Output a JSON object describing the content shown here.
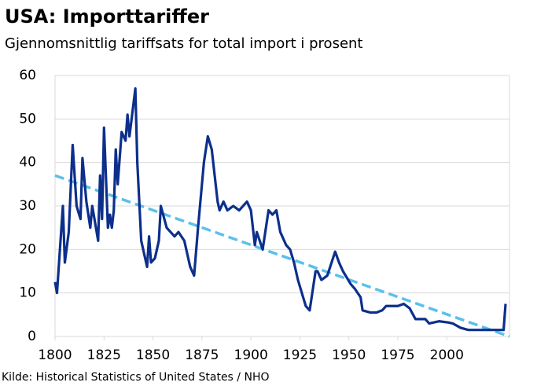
{
  "chart_data": {
    "type": "line",
    "title": "USA: Importtariffer",
    "subtitle": "Gjennomsnittlig  tariffsats for total import i prosent",
    "source": "Kilde: Historical Statistics of United States / NHO",
    "x": [
      1800,
      1801,
      1804,
      1805,
      1807,
      1809,
      1811,
      1813,
      1814,
      1816,
      1818,
      1819,
      1822,
      1823,
      1824,
      1825,
      1827,
      1828,
      1829,
      1830,
      1831,
      1832,
      1834,
      1836,
      1837,
      1838,
      1841,
      1842,
      1844,
      1847,
      1848,
      1849,
      1851,
      1853,
      1854,
      1857,
      1861,
      1863,
      1866,
      1869,
      1871,
      1873,
      1876,
      1878,
      1880,
      1883,
      1884,
      1886,
      1888,
      1891,
      1894,
      1898,
      1900,
      1902,
      1903,
      1906,
      1907,
      1909,
      1911,
      1913,
      1915,
      1918,
      1920,
      1922,
      1924,
      1928,
      1930,
      1933,
      1934,
      1936,
      1939,
      1943,
      1945,
      1947,
      1951,
      1953,
      1956,
      1957,
      1961,
      1964,
      1967,
      1969,
      1975,
      1978,
      1981,
      1984,
      1989,
      1991,
      1996,
      2001,
      2003,
      2007,
      2011,
      2020,
      2029,
      2030
    ],
    "series": [
      {
        "color": "#0d2f8c",
        "values": [
          12.5,
          10,
          30,
          17,
          24,
          44,
          30,
          27,
          41,
          31,
          25,
          30,
          22,
          37,
          27,
          48,
          25,
          28,
          25,
          29,
          43,
          35,
          47,
          45,
          51,
          46,
          57,
          40,
          22,
          16,
          23,
          17,
          18,
          22,
          30,
          25,
          23,
          24,
          22,
          16,
          14,
          25,
          40,
          46,
          43,
          31,
          29,
          31,
          29,
          30,
          29,
          31,
          29,
          21,
          24,
          20,
          23,
          29,
          28,
          29,
          24,
          21,
          20,
          17,
          13,
          7,
          6,
          15,
          15,
          13,
          14,
          19.5,
          17,
          15,
          12,
          11,
          9,
          6,
          5.5,
          5.5,
          6,
          7,
          7,
          7.5,
          6.5,
          4,
          4,
          3,
          3.5,
          3.2,
          3,
          2,
          1.5,
          1.5,
          1.5,
          7.5
        ]
      }
    ],
    "trend": {
      "color": "#5bc0eb",
      "x": [
        1800,
        2032
      ],
      "values": [
        37,
        0
      ]
    },
    "xlim": [
      1800,
      2032
    ],
    "ylim": [
      0,
      60
    ],
    "xticks": [
      1800,
      1825,
      1850,
      1875,
      1900,
      1925,
      1950,
      1975,
      2000
    ],
    "yticks": [
      0,
      10,
      20,
      30,
      40,
      50,
      60
    ],
    "grid": true
  }
}
